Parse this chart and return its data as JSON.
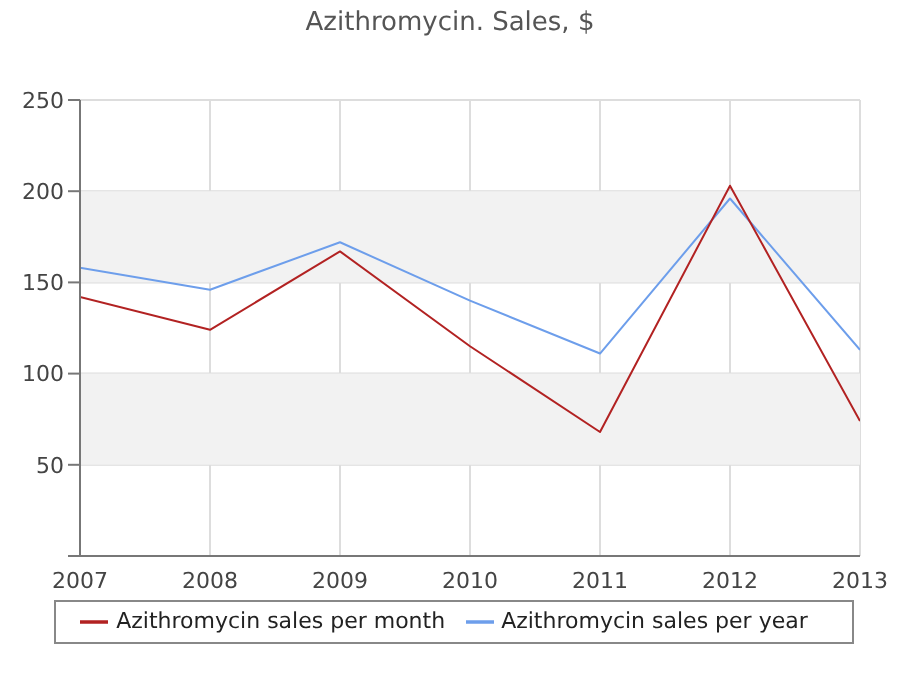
{
  "chart_data": {
    "type": "line",
    "title": "Azithromycin. Sales, $",
    "x": [
      2007,
      2008,
      2009,
      2010,
      2011,
      2012,
      2013
    ],
    "series": [
      {
        "name": "Azithromycin sales per year",
        "color": "#6d9eeb",
        "values": [
          158,
          146,
          172,
          140,
          111,
          196,
          113
        ]
      },
      {
        "name": "Azithromycin sales per month",
        "color": "#b22222",
        "values": [
          142,
          124,
          167,
          115,
          68,
          203,
          74
        ]
      }
    ],
    "xlim": [
      2007,
      2013
    ],
    "xticks": [
      2007,
      2008,
      2009,
      2010,
      2011,
      2012,
      2013
    ],
    "ylim": [
      0,
      250
    ],
    "yticks": [
      {
        "value": 0,
        "label": null
      },
      50,
      100,
      150,
      200,
      250
    ],
    "bands": [
      {
        "axis": "y",
        "from": 50,
        "to": 100,
        "color": "#f2f2f2"
      },
      {
        "axis": "y",
        "from": 150,
        "to": 200,
        "color": "#f2f2f2"
      }
    ],
    "grid": true,
    "legend": "bottom",
    "marker": "none",
    "line_style": "solid"
  }
}
